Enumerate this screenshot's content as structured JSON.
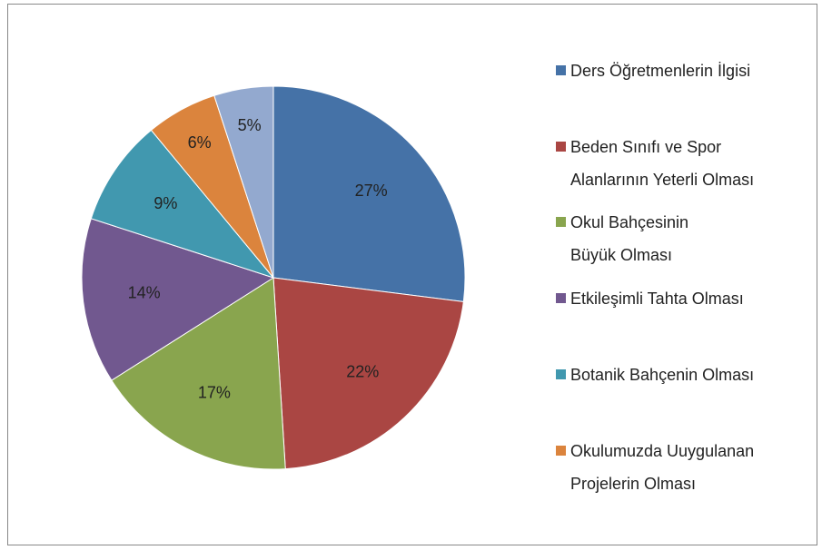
{
  "chart_data": {
    "type": "pie",
    "categories": [
      "Ders Öğretmenlerin İlgisi",
      "Beden Sınıfı ve Spor Alanlarının Yeterli Olması",
      "Okul Bahçesinin Büyük Olması",
      "Etkileşimli Tahta Olması",
      "Botanik Bahçenin Olması",
      "Okulumuzda Uuygulanan Projelerin Olması",
      null
    ],
    "values": [
      27,
      22,
      17,
      14,
      9,
      6,
      5
    ],
    "value_labels": [
      "27%",
      "22%",
      "17%",
      "14%",
      "9%",
      "6%",
      "5%"
    ],
    "colors": [
      "#4572a7",
      "#aa4643",
      "#89a54e",
      "#71588f",
      "#4198af",
      "#db843d",
      "#93a9cf"
    ],
    "legend": "right"
  }
}
